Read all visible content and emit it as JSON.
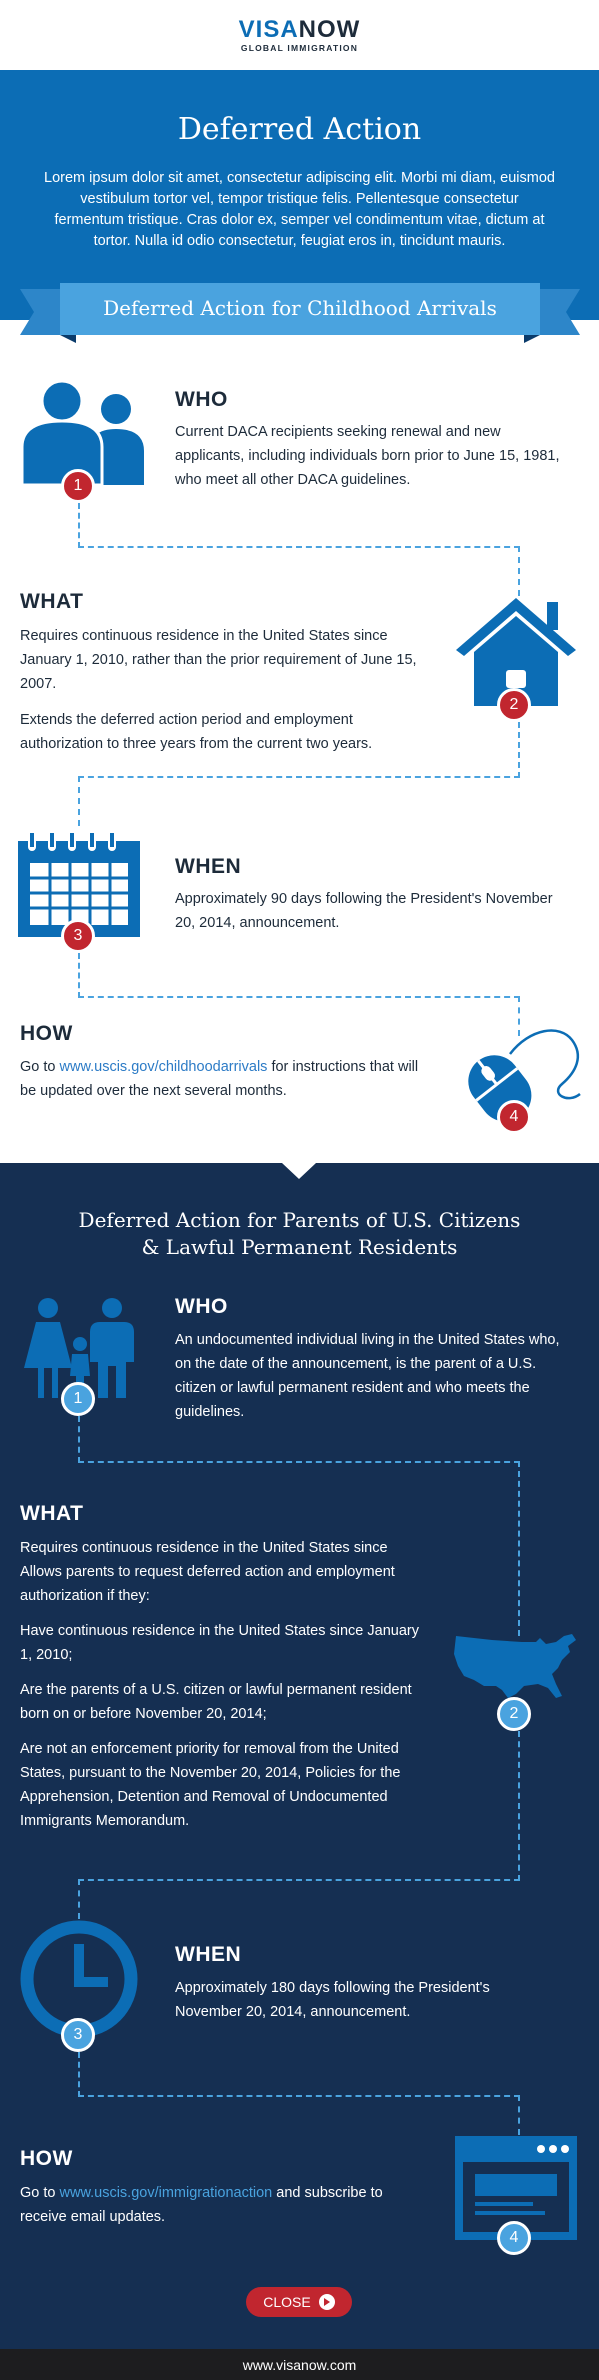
{
  "header": {
    "logo_part1": "VISA",
    "logo_part2": "NOW",
    "logo_sub": "GLOBAL IMMIGRATION"
  },
  "hero": {
    "title": "Deferred Action",
    "text": "Lorem ipsum dolor sit amet, consectetur adipiscing elit. Morbi mi diam, euismod vestibulum tortor vel, tempor tristique felis. Pellentesque consectetur fermentum tristique. Cras dolor ex, semper vel condimentum vitae, dictum at tortor. Nulla id odio consectetur, feugiat eros in, tincidunt mauris."
  },
  "daca": {
    "banner": "Deferred Action for Childhood Arrivals",
    "who": {
      "num": "1",
      "heading": "WHO",
      "text": "Current DACA recipients seeking renewal and new applicants, including individuals born prior to June 15, 1981, who meet all other DACA guidelines."
    },
    "what": {
      "num": "2",
      "heading": "WHAT",
      "text1": "Requires continuous residence in the United States since January 1, 2010, rather than the prior requirement of June 15, 2007.",
      "text2": "Extends the deferred action period and employment authorization to three years from the current two years."
    },
    "when": {
      "num": "3",
      "heading": "WHEN",
      "text": "Approximately 90 days following the President's November 20, 2014, announcement."
    },
    "how": {
      "num": "4",
      "heading": "HOW",
      "pre": "Go to ",
      "link": "www.uscis.gov/childhoodarrivals",
      "post": " for instructions that will be updated over the next several months."
    }
  },
  "dapa": {
    "title_line1": "Deferred Action for Parents of U.S. Citizens",
    "title_line2": "& Lawful Permanent Residents",
    "who": {
      "num": "1",
      "heading": "WHO",
      "text": "An undocumented individual living in the United States who, on the date of the announcement, is the parent of a U.S. citizen or lawful permanent resident and who meets the guidelines."
    },
    "what": {
      "num": "2",
      "heading": "WHAT",
      "text1": "Requires continuous residence in the United States since Allows parents to request deferred action and employment authorization if they:",
      "text2": "Have continuous residence in the United States since January 1, 2010;",
      "text3": "Are the parents of a U.S. citizen or lawful permanent resident born on or before November 20, 2014;",
      "text4": "Are not an enforcement priority for removal from the United States, pursuant to the November 20, 2014, Policies for the Apprehension, Detention and Removal of Undocumented Immigrants Memorandum."
    },
    "when": {
      "num": "3",
      "heading": "WHEN",
      "text": "Approximately 180 days following the President's November 20, 2014, announcement."
    },
    "how": {
      "num": "4",
      "heading": "HOW",
      "pre": "Go to ",
      "link": "www.uscis.gov/immigrationaction",
      "post": " and subscribe to receive email updates."
    }
  },
  "close_button": "CLOSE",
  "footer": {
    "url": "www.visanow.com"
  },
  "colors": {
    "blue": "#0c6db5",
    "navy": "#152f52",
    "red": "#c1262f",
    "light_blue": "#4aa3df"
  }
}
